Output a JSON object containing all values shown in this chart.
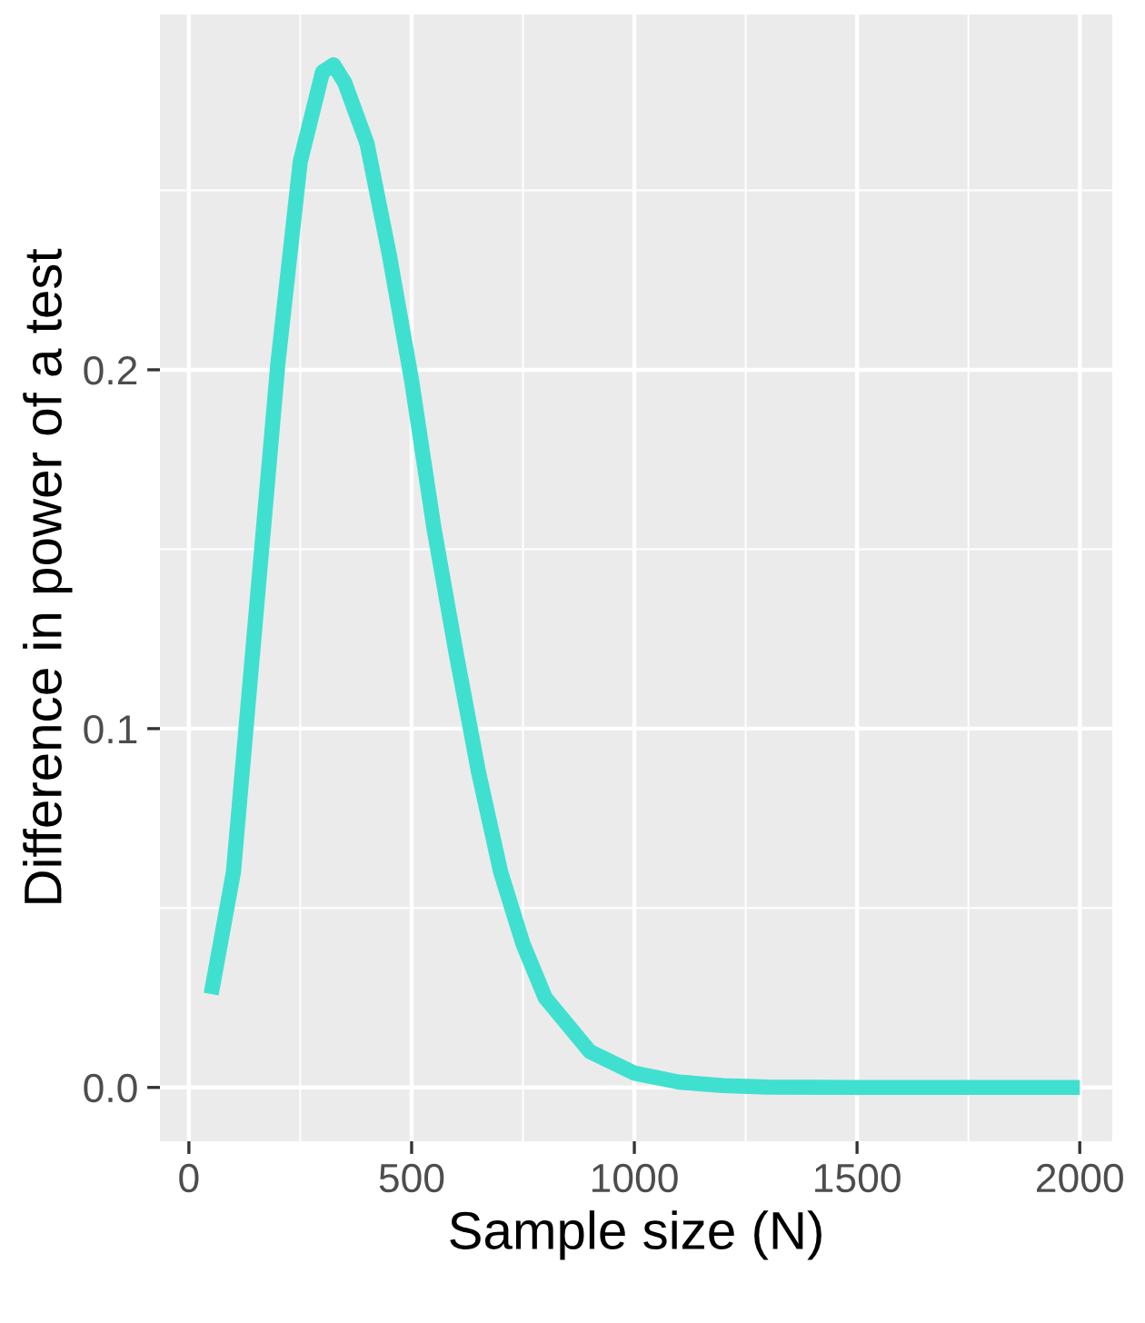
{
  "chart_data": {
    "type": "line",
    "xlabel": "Sample size (N)",
    "ylabel": "Difference in power of a test",
    "series": [
      {
        "color": "#40e0d0",
        "x": [
          50,
          100,
          150,
          200,
          250,
          300,
          325,
          350,
          400,
          450,
          500,
          550,
          600,
          650,
          700,
          750,
          800,
          900,
          1000,
          1100,
          1200,
          1300,
          1500,
          2000
        ],
        "values": [
          0.026,
          0.06,
          0.131,
          0.202,
          0.258,
          0.283,
          0.285,
          0.28,
          0.263,
          0.232,
          0.197,
          0.156,
          0.121,
          0.088,
          0.06,
          0.04,
          0.025,
          0.01,
          0.004,
          0.0015,
          0.0005,
          0.0001,
          0,
          0
        ]
      }
    ],
    "xlim": [
      -65,
      2073
    ],
    "ylim": [
      -0.015,
      0.299
    ],
    "xticks": [
      0,
      500,
      1000,
      1500,
      2000
    ],
    "yticks": [
      {
        "value": 0,
        "label": "0.0"
      },
      {
        "value": 0.1,
        "label": "0.1"
      },
      {
        "value": 0.2,
        "label": "0.2"
      }
    ],
    "grid": true,
    "marker": "none",
    "line_style": "solid"
  }
}
